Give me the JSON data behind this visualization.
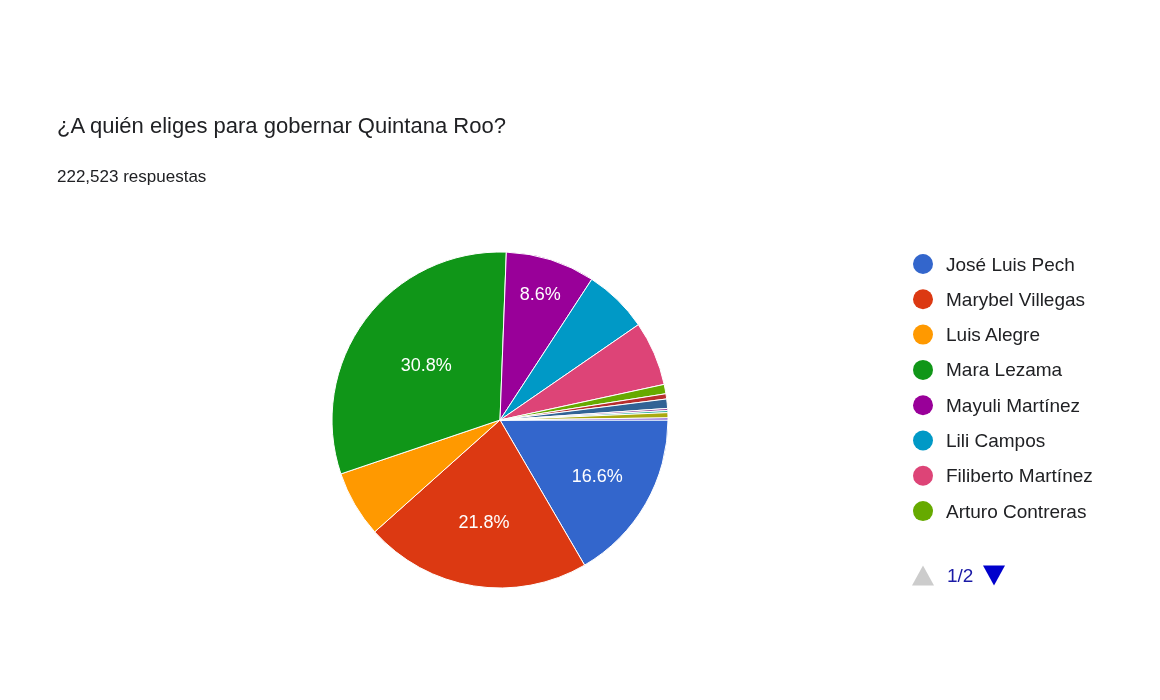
{
  "chart_data": {
    "type": "pie",
    "title": "¿A quién eliges para gobernar Quintana Roo?",
    "subtitle": "222,523 respuestas",
    "categories": [
      "José Luis Pech",
      "Marybel Villegas",
      "Luis Alegre",
      "Mara Lezama",
      "Mayuli Martínez",
      "Lili Campos",
      "Filiberto Martínez",
      "Arturo Contreras",
      null,
      null,
      null,
      null,
      null,
      null
    ],
    "values": [
      16.6,
      21.8,
      6.4,
      30.8,
      8.6,
      6.2,
      6.2,
      0.9,
      0.5,
      0.9,
      0.2,
      0.2,
      0.5,
      0.2
    ],
    "colors": [
      "#3366cc",
      "#dc3912",
      "#ff9900",
      "#109618",
      "#990099",
      "#0099c6",
      "#dd4477",
      "#66aa00",
      "#b82e2e",
      "#316395",
      "#994499",
      "#22aa99",
      "#aaaa11",
      "#6633cc"
    ],
    "value_labels": [
      "16.6%",
      "21.8%",
      null,
      "30.8%",
      "8.6%",
      null,
      null,
      null,
      null,
      null,
      null,
      null,
      null,
      null
    ],
    "legend": "right",
    "annotations": [
      "1/2"
    ]
  }
}
